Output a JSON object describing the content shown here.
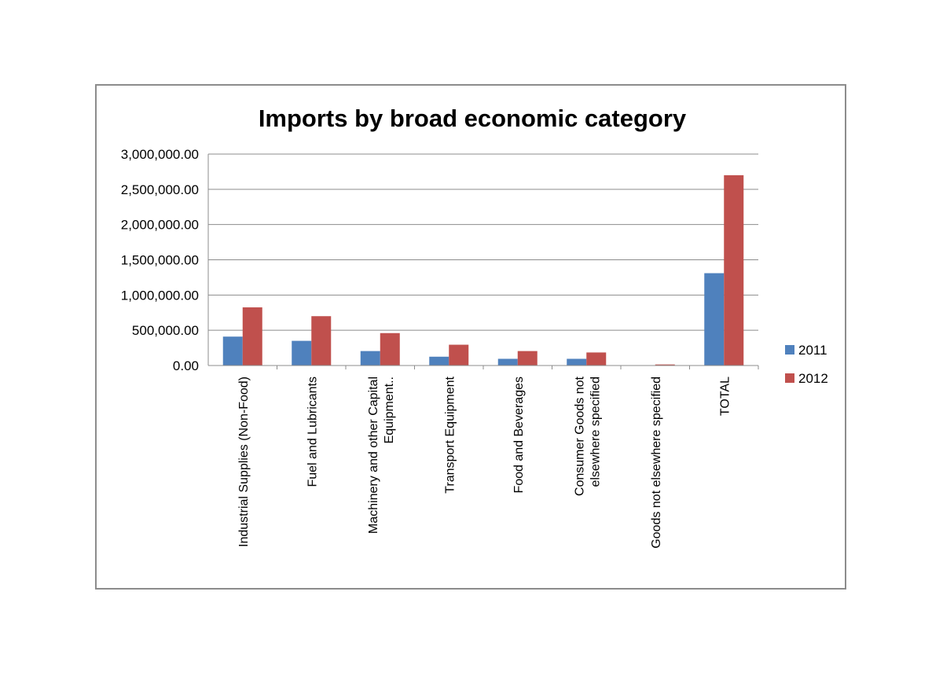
{
  "chart_data": {
    "type": "bar",
    "title": "Imports by broad economic category",
    "xlabel": "",
    "ylabel": "",
    "categories": [
      [
        "Industrial Supplies (Non-Food)"
      ],
      [
        "Fuel and Lubricants"
      ],
      [
        "Machinery and other Capital",
        "Equipment.."
      ],
      [
        "Transport Equipment"
      ],
      [
        "Food and Beverages"
      ],
      [
        "Consumer Goods not",
        "elsewhere specified"
      ],
      [
        "Goods not elsewhere specified"
      ],
      [
        "TOTAL"
      ]
    ],
    "series": [
      {
        "name": "2011",
        "color": "#4f81bd",
        "values": [
          410000,
          350000,
          205000,
          125000,
          95000,
          95000,
          2000,
          1310000
        ]
      },
      {
        "name": "2012",
        "color": "#c0504d",
        "values": [
          825000,
          700000,
          460000,
          295000,
          205000,
          185000,
          15000,
          2700000
        ]
      }
    ],
    "ylim": [
      0,
      3000000
    ],
    "yticks": [
      0,
      500000,
      1000000,
      1500000,
      2000000,
      2500000,
      3000000
    ],
    "ytick_labels": [
      "0.00",
      "500,000.00",
      "1,000,000.00",
      "1,500,000.00",
      "2,000,000.00",
      "2,500,000.00",
      "3,000,000.00"
    ],
    "grid": true,
    "legend": "right"
  }
}
